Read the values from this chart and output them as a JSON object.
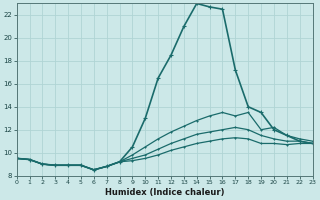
{
  "xlabel": "Humidex (Indice chaleur)",
  "ylabel": "",
  "background_color": "#cce8e8",
  "grid_color": "#b0d4d4",
  "line_color": "#1a6b6b",
  "xlim": [
    0,
    23
  ],
  "ylim": [
    8,
    23
  ],
  "yticks": [
    8,
    10,
    12,
    14,
    16,
    18,
    20,
    22
  ],
  "xticks": [
    0,
    1,
    2,
    3,
    4,
    5,
    6,
    7,
    8,
    9,
    10,
    11,
    12,
    13,
    14,
    15,
    16,
    17,
    18,
    19,
    20,
    21,
    22,
    23
  ],
  "series": [
    [
      9.5,
      9.4,
      9.0,
      8.9,
      8.9,
      8.9,
      8.5,
      8.8,
      9.2,
      10.5,
      13.0,
      16.5,
      18.5,
      21.0,
      23.0,
      22.7,
      22.5,
      17.2,
      14.0,
      13.5,
      12.0,
      11.5,
      11.0,
      10.8
    ],
    [
      9.5,
      9.4,
      9.0,
      8.9,
      8.9,
      8.9,
      8.5,
      8.8,
      9.2,
      9.8,
      10.5,
      11.2,
      11.8,
      12.3,
      12.8,
      13.2,
      13.5,
      13.2,
      13.5,
      12.0,
      12.2,
      11.5,
      11.2,
      11.0
    ],
    [
      9.5,
      9.4,
      9.0,
      8.9,
      8.9,
      8.9,
      8.5,
      8.8,
      9.2,
      9.5,
      9.8,
      10.3,
      10.8,
      11.2,
      11.6,
      11.8,
      12.0,
      12.2,
      12.0,
      11.5,
      11.2,
      11.0,
      11.0,
      10.8
    ],
    [
      9.5,
      9.4,
      9.0,
      8.9,
      8.9,
      8.9,
      8.5,
      8.8,
      9.2,
      9.3,
      9.5,
      9.8,
      10.2,
      10.5,
      10.8,
      11.0,
      11.2,
      11.3,
      11.2,
      10.8,
      10.8,
      10.7,
      10.8,
      10.8
    ]
  ],
  "series_styles": [
    {
      "linewidth": 1.2,
      "markersize": 2.5
    },
    {
      "linewidth": 0.9,
      "markersize": 2.0
    },
    {
      "linewidth": 0.9,
      "markersize": 2.0
    },
    {
      "linewidth": 0.9,
      "markersize": 2.0
    }
  ]
}
